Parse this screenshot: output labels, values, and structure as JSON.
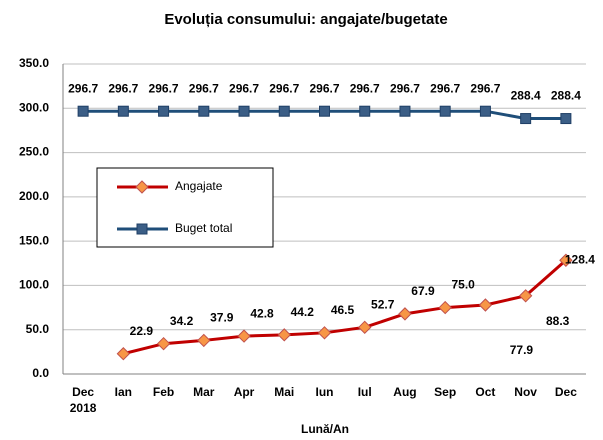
{
  "chart_data": {
    "type": "line",
    "title": "Evoluția consumului: angajate/bugetate",
    "x_label": "Lună/An",
    "categories": [
      "Dec 2018",
      "Ian",
      "Feb",
      "Mar",
      "Apr",
      "Mai",
      "Iun",
      "Iul",
      "Aug",
      "Sep",
      "Oct",
      "Nov",
      "Dec"
    ],
    "series": [
      {
        "name": "Angajate",
        "color": "#c00000",
        "marker_color": "#f79646",
        "marker": "diamond",
        "values": [
          null,
          22.9,
          34.2,
          37.9,
          42.8,
          44.2,
          46.5,
          52.7,
          67.9,
          75,
          77.9,
          88.3,
          128.4
        ],
        "value_labels": [
          null,
          "22.9",
          "34.2",
          "37.9",
          "42.8",
          "44.2",
          "46.5",
          "52.7",
          "67.9",
          "75.0",
          "77.9",
          "88.3",
          "128.4"
        ]
      },
      {
        "name": "Buget total",
        "color": "#1f4e79",
        "marker_color": "#3b5e86",
        "marker": "square",
        "values": [
          296.7,
          296.7,
          296.7,
          296.7,
          296.7,
          296.7,
          296.7,
          296.7,
          296.7,
          296.7,
          296.7,
          288.4,
          288.4
        ]
      }
    ],
    "ylim": [
      0,
      350
    ],
    "yticks": [
      {
        "value": 0,
        "label": "0.0"
      },
      {
        "value": 50,
        "label": "50.0"
      },
      {
        "value": 100,
        "label": "100.0"
      },
      {
        "value": 150,
        "label": "150.0"
      },
      {
        "value": 200,
        "label": "200.0"
      },
      {
        "value": 250,
        "label": "250.0"
      },
      {
        "value": 300,
        "label": "300.0"
      },
      {
        "value": 350,
        "label": "350.0"
      }
    ],
    "grid": true,
    "legend": "left"
  }
}
